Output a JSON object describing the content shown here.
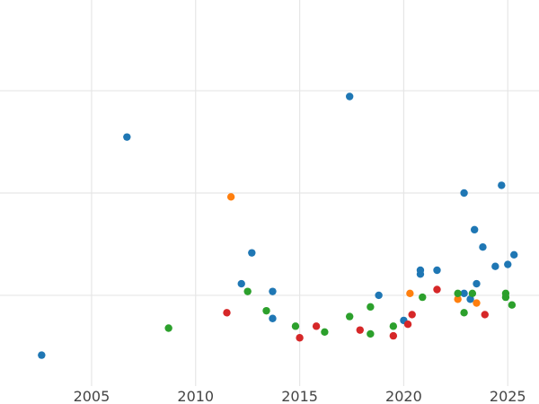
{
  "chart_data": {
    "type": "scatter",
    "title": "",
    "xlabel": "",
    "ylabel": "",
    "xlim": [
      2000.6,
      2026.5
    ],
    "ylim": [
      0,
      1
    ],
    "xticks": [
      2005,
      2010,
      2015,
      2020,
      2025
    ],
    "xtick_labels": [
      "2005",
      "2010",
      "2015",
      "2020",
      "2025"
    ],
    "y_gridlines": [
      0.235,
      0.5,
      0.765
    ],
    "grid": true,
    "legend": "none",
    "colors": {
      "blue": "#1f77b4",
      "orange": "#ff7f0e",
      "green": "#2ca02c",
      "red": "#d62728"
    },
    "series": [
      {
        "color": "blue",
        "points": [
          {
            "x": 2002.6,
            "y": 0.08
          },
          {
            "x": 2006.7,
            "y": 0.645
          },
          {
            "x": 2012.2,
            "y": 0.265
          },
          {
            "x": 2012.7,
            "y": 0.345
          },
          {
            "x": 2013.7,
            "y": 0.245
          },
          {
            "x": 2013.7,
            "y": 0.175
          },
          {
            "x": 2017.4,
            "y": 0.75
          },
          {
            "x": 2018.8,
            "y": 0.235
          },
          {
            "x": 2020.0,
            "y": 0.17
          },
          {
            "x": 2020.8,
            "y": 0.29
          },
          {
            "x": 2020.8,
            "y": 0.3
          },
          {
            "x": 2021.6,
            "y": 0.3
          },
          {
            "x": 2022.9,
            "y": 0.5
          },
          {
            "x": 2023.4,
            "y": 0.405
          },
          {
            "x": 2023.8,
            "y": 0.36
          },
          {
            "x": 2022.9,
            "y": 0.24
          },
          {
            "x": 2023.2,
            "y": 0.225
          },
          {
            "x": 2023.5,
            "y": 0.265
          },
          {
            "x": 2024.4,
            "y": 0.31
          },
          {
            "x": 2024.7,
            "y": 0.52
          },
          {
            "x": 2025.0,
            "y": 0.315
          },
          {
            "x": 2025.3,
            "y": 0.34
          }
        ]
      },
      {
        "color": "orange",
        "points": [
          {
            "x": 2011.7,
            "y": 0.49
          },
          {
            "x": 2020.3,
            "y": 0.24
          },
          {
            "x": 2022.6,
            "y": 0.225
          },
          {
            "x": 2023.5,
            "y": 0.215
          }
        ]
      },
      {
        "color": "green",
        "points": [
          {
            "x": 2008.7,
            "y": 0.15
          },
          {
            "x": 2012.5,
            "y": 0.245
          },
          {
            "x": 2013.4,
            "y": 0.195
          },
          {
            "x": 2014.8,
            "y": 0.155
          },
          {
            "x": 2016.2,
            "y": 0.14
          },
          {
            "x": 2017.4,
            "y": 0.18
          },
          {
            "x": 2018.4,
            "y": 0.135
          },
          {
            "x": 2018.4,
            "y": 0.205
          },
          {
            "x": 2019.5,
            "y": 0.155
          },
          {
            "x": 2020.9,
            "y": 0.23
          },
          {
            "x": 2022.6,
            "y": 0.24
          },
          {
            "x": 2022.9,
            "y": 0.19
          },
          {
            "x": 2023.3,
            "y": 0.24
          },
          {
            "x": 2024.9,
            "y": 0.24
          },
          {
            "x": 2024.9,
            "y": 0.23
          },
          {
            "x": 2025.2,
            "y": 0.21
          }
        ]
      },
      {
        "color": "red",
        "points": [
          {
            "x": 2011.5,
            "y": 0.19
          },
          {
            "x": 2015.0,
            "y": 0.125
          },
          {
            "x": 2015.8,
            "y": 0.155
          },
          {
            "x": 2017.9,
            "y": 0.145
          },
          {
            "x": 2019.5,
            "y": 0.13
          },
          {
            "x": 2020.2,
            "y": 0.16
          },
          {
            "x": 2020.4,
            "y": 0.185
          },
          {
            "x": 2021.6,
            "y": 0.25
          },
          {
            "x": 2023.9,
            "y": 0.185
          }
        ]
      }
    ]
  }
}
